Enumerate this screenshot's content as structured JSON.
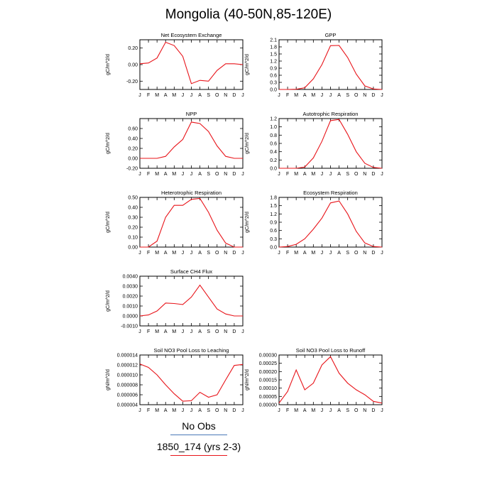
{
  "title": "Mongolia (40-50N,85-120E)",
  "months": [
    "J",
    "F",
    "M",
    "A",
    "M",
    "J",
    "J",
    "A",
    "S",
    "O",
    "N",
    "D",
    "J"
  ],
  "legend": [
    {
      "label": "No Obs",
      "color": "#4a78b8"
    },
    {
      "label": "1850_174 (yrs 2-3)",
      "color": "#e8141a"
    }
  ],
  "chart_data": [
    {
      "type": "line",
      "title": "Net Ecosystem Exchange",
      "ylabel": "gC/m^2/d",
      "ylim": [
        -0.3,
        0.3
      ],
      "yticks": [
        -0.2,
        0.0,
        0.2
      ],
      "ytick_labels": [
        "-0.20",
        "0.00",
        "0.20"
      ],
      "values": [
        0.01,
        0.02,
        0.08,
        0.27,
        0.23,
        0.1,
        -0.23,
        -0.19,
        -0.2,
        -0.07,
        0.01,
        0.01,
        0.0
      ]
    },
    {
      "type": "line",
      "title": "GPP",
      "ylabel": "gC/m^2/d",
      "ylim": [
        0,
        2.1
      ],
      "yticks": [
        0,
        0.3,
        0.6,
        0.9,
        1.2,
        1.5,
        1.8,
        2.1
      ],
      "ytick_labels": [
        "0.0",
        "0.3",
        "0.6",
        "0.9",
        "1.2",
        "1.5",
        "1.8",
        "2.1"
      ],
      "values": [
        0.0,
        0.0,
        0.01,
        0.07,
        0.45,
        1.05,
        1.85,
        1.86,
        1.35,
        0.65,
        0.15,
        0.02,
        0.0
      ]
    },
    {
      "type": "line",
      "title": "NPP",
      "ylabel": "gC/m^2/d",
      "ylim": [
        -0.2,
        0.8
      ],
      "yticks": [
        -0.2,
        0.0,
        0.2,
        0.4,
        0.6
      ],
      "ytick_labels": [
        "-0.20",
        "0.00",
        "0.20",
        "0.40",
        "0.60"
      ],
      "values": [
        0.0,
        0.0,
        0.0,
        0.04,
        0.23,
        0.38,
        0.73,
        0.7,
        0.54,
        0.25,
        0.04,
        0.0,
        0.0
      ]
    },
    {
      "type": "line",
      "title": "Autotrophic Respiration",
      "ylabel": "gC/m^2/d",
      "ylim": [
        0,
        1.2
      ],
      "yticks": [
        0,
        0.2,
        0.4,
        0.6,
        0.8,
        1.0,
        1.2
      ],
      "ytick_labels": [
        "0.0",
        "0.2",
        "0.4",
        "0.6",
        "0.8",
        "1.0",
        "1.2"
      ],
      "values": [
        0.0,
        0.0,
        0.0,
        0.03,
        0.25,
        0.65,
        1.15,
        1.18,
        0.82,
        0.4,
        0.12,
        0.02,
        0.0
      ]
    },
    {
      "type": "line",
      "title": "Heterotrophic Respiration",
      "ylabel": "gC/m^2/d",
      "ylim": [
        0,
        0.5
      ],
      "yticks": [
        0,
        0.1,
        0.2,
        0.3,
        0.4,
        0.5
      ],
      "ytick_labels": [
        "0.00",
        "0.10",
        "0.20",
        "0.30",
        "0.40",
        "0.50"
      ],
      "values": [
        0.0,
        0.0,
        0.06,
        0.3,
        0.42,
        0.42,
        0.48,
        0.49,
        0.35,
        0.17,
        0.04,
        0.0,
        0.0
      ]
    },
    {
      "type": "line",
      "title": "Ecosystem Respiration",
      "ylabel": "gC/m^2/d",
      "ylim": [
        0,
        1.8
      ],
      "yticks": [
        0,
        0.3,
        0.6,
        0.9,
        1.2,
        1.5,
        1.8
      ],
      "ytick_labels": [
        "0.0",
        "0.3",
        "0.6",
        "0.9",
        "1.2",
        "1.5",
        "1.8"
      ],
      "values": [
        0.0,
        0.02,
        0.1,
        0.3,
        0.65,
        1.05,
        1.6,
        1.67,
        1.2,
        0.57,
        0.15,
        0.02,
        0.0
      ]
    },
    {
      "type": "line",
      "title": "Surface CH4 Flux",
      "ylabel": "gC/m^2/d",
      "ylim": [
        -0.001,
        0.004
      ],
      "yticks": [
        -0.001,
        0.0,
        0.001,
        0.002,
        0.003,
        0.004
      ],
      "ytick_labels": [
        "-0.0010",
        "0.0000",
        "0.0010",
        "0.0020",
        "0.0030",
        "0.0040"
      ],
      "values": [
        0.0,
        0.0001,
        0.0005,
        0.0013,
        0.00125,
        0.00115,
        0.0019,
        0.0031,
        0.0019,
        0.0007,
        0.0002,
        0.0,
        0.0
      ]
    },
    {
      "type": "line",
      "title": "Soil NO3 Pool Loss to Leaching",
      "ylabel": "gN/m^2/d",
      "ylim": [
        4e-06,
        1.4e-05
      ],
      "yticks": [
        4e-06,
        6e-06,
        8e-06,
        1e-05,
        1.2e-05,
        1.4e-05
      ],
      "ytick_labels": [
        "0.000004",
        "0.000006",
        "0.000008",
        "0.000010",
        "0.000012",
        "0.000014"
      ],
      "values": [
        1.22e-05,
        1.15e-05,
        1e-05,
        8e-06,
        6.2e-06,
        4.7e-06,
        4.8e-06,
        6.5e-06,
        5.5e-06,
        6e-06,
        9e-06,
        1.19e-05,
        1.21e-05
      ]
    },
    {
      "type": "line",
      "title": "Soil NO3 Pool Loss to Runoff",
      "ylabel": "gN/m^2/d",
      "ylim": [
        0,
        0.0003
      ],
      "yticks": [
        0,
        5e-05,
        0.0001,
        0.00015,
        0.0002,
        0.00025,
        0.0003
      ],
      "ytick_labels": [
        "0.00000",
        "0.00005",
        "0.00010",
        "0.00015",
        "0.00020",
        "0.00025",
        "0.00030"
      ],
      "values": [
        1e-05,
        8e-05,
        0.00021,
        9e-05,
        0.00013,
        0.00024,
        0.00029,
        0.00019,
        0.00013,
        9e-05,
        6e-05,
        2e-05,
        1e-05
      ]
    }
  ]
}
